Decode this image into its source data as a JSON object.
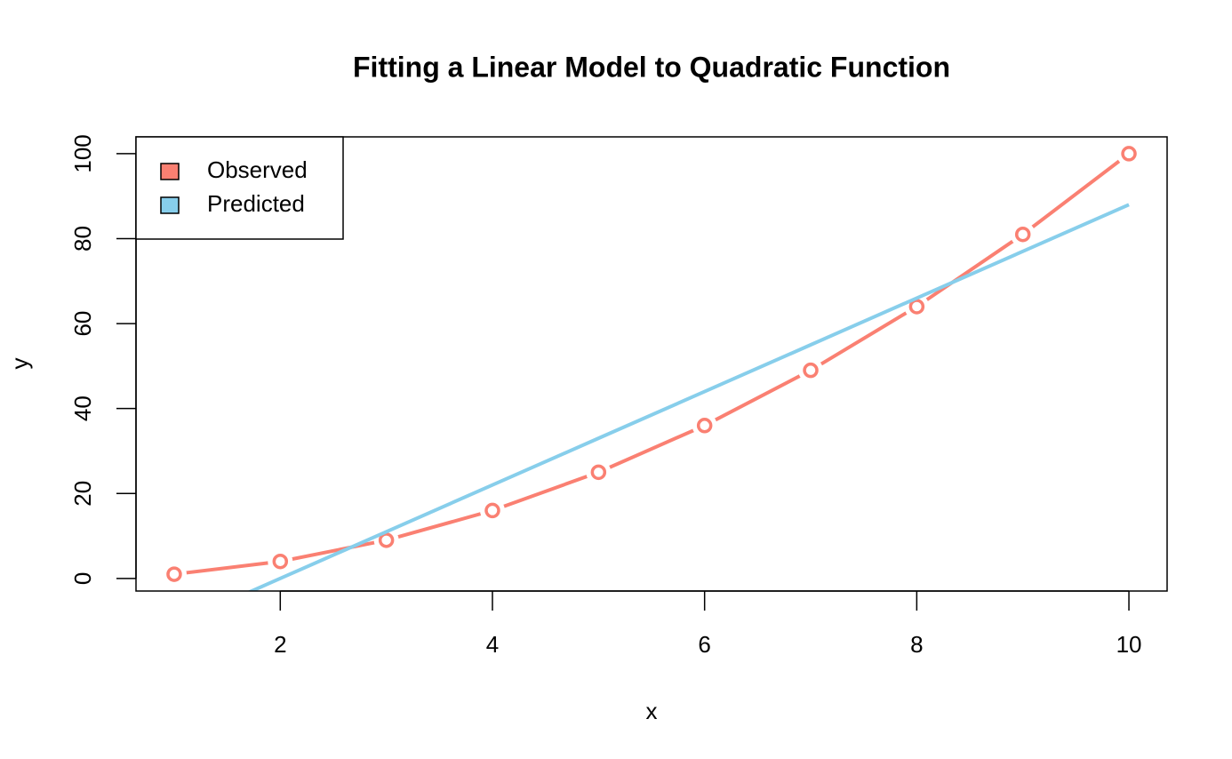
{
  "chart_data": {
    "type": "line",
    "title": "Fitting a Linear Model to Quadratic Function",
    "x_label": "x",
    "y_label": "y",
    "x": [
      1,
      2,
      3,
      4,
      5,
      6,
      7,
      8,
      9,
      10
    ],
    "series": [
      {
        "name": "Observed",
        "color": "#fa8072",
        "values": [
          1,
          4,
          9,
          16,
          25,
          36,
          49,
          64,
          81,
          100
        ],
        "markers": true
      },
      {
        "name": "Predicted",
        "color": "#87ceeb",
        "values": [
          -11,
          0,
          11,
          22,
          33,
          44,
          55,
          66,
          77,
          88
        ],
        "markers": false
      }
    ],
    "xlim": [
      0.64,
      10.36
    ],
    "xticks": [
      2,
      4,
      6,
      8,
      10
    ],
    "ylim": [
      -2.96,
      103.96
    ],
    "yticks": [
      0,
      20,
      40,
      60,
      80,
      100
    ],
    "legend": "topleft"
  }
}
